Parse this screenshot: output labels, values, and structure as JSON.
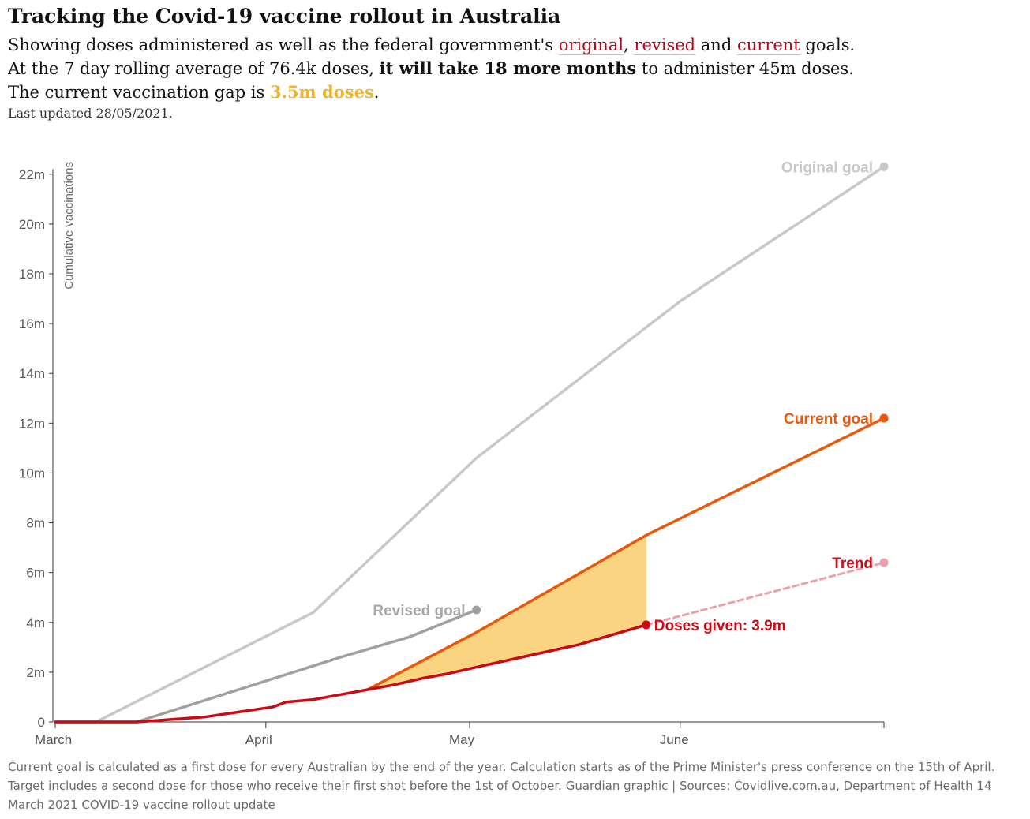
{
  "header": {
    "title": "Tracking the Covid-19 vaccine rollout in Australia",
    "line1_prefix": "Showing doses administered as well as the federal government's ",
    "kw_original": "original",
    "sep1": ", ",
    "kw_revised": "revised",
    "sep2": " and ",
    "kw_current": "current",
    "line1_suffix": " goals.",
    "line2_prefix": "At the 7 day rolling average of 76.4k doses, ",
    "line2_bold": "it will take 18 more months",
    "line2_suffix": " to administer 45m doses.",
    "line3_prefix": "The current vaccination gap is ",
    "line3_gap": "3.5m doses",
    "line3_suffix": ".",
    "updated": "Last updated 28/05/2021."
  },
  "footer": {
    "note": "Current goal is calculated as a first dose for every Australian by the end of the year. Calculation starts as of the Prime Minister's press conference on the 15th of April. Target includes a second dose for those who receive their first shot before the 1st of October. Guardian graphic | Sources: Covidlive.com.au, Department of Health 14 March 2021 COVID-19 vaccine rollout update"
  },
  "colors": {
    "original": "#c8c8c8",
    "revised": "#a0a0a0",
    "current": "#e8590c",
    "doses": "#cc0a14",
    "trend": "#eea0a8",
    "gap": "#fad27a"
  },
  "chart_data": {
    "type": "line",
    "ylabel": "Cumulative vaccinations",
    "xlabel": "",
    "y_ticks": [
      0,
      2,
      4,
      6,
      8,
      10,
      12,
      14,
      16,
      18,
      20,
      22
    ],
    "y_tick_labels": [
      "0",
      "2m",
      "4m",
      "6m",
      "8m",
      "10m",
      "12m",
      "14m",
      "16m",
      "18m",
      "20m",
      "22m"
    ],
    "ylim": [
      0,
      22.5
    ],
    "x_unit": "days since 1 Feb 2021",
    "xlim": [
      28,
      150
    ],
    "x_ticks": [
      {
        "x": 28,
        "label": "March"
      },
      {
        "x": 59,
        "label": "April"
      },
      {
        "x": 89,
        "label": "May"
      },
      {
        "x": 120,
        "label": "June"
      },
      {
        "x": 150,
        "label": ""
      }
    ],
    "gap_label": "3.5m doses",
    "series": [
      {
        "name": "Original goal",
        "label": "Original goal",
        "key": "original",
        "x": [
          28,
          34,
          50,
          66,
          90,
          120,
          150
        ],
        "y": [
          0,
          0,
          2.2,
          4.4,
          10.6,
          16.9,
          22.3
        ]
      },
      {
        "name": "Revised goal",
        "label": "Revised goal",
        "key": "revised",
        "x": [
          28,
          40,
          55,
          70,
          80,
          90
        ],
        "y": [
          0,
          0,
          1.3,
          2.6,
          3.4,
          4.5
        ]
      },
      {
        "name": "Current goal",
        "label": "Current goal",
        "key": "current",
        "x": [
          74,
          90,
          115,
          150
        ],
        "y": [
          1.3,
          3.6,
          7.5,
          12.2
        ]
      },
      {
        "name": "Doses given",
        "label": "Doses given: 3.9m",
        "key": "doses",
        "x": [
          28,
          40,
          45,
          50,
          55,
          60,
          62,
          66,
          70,
          74,
          78,
          82,
          86,
          90,
          95,
          100,
          105,
          110,
          115
        ],
        "y": [
          0,
          0,
          0.1,
          0.2,
          0.4,
          0.6,
          0.8,
          0.9,
          1.1,
          1.3,
          1.5,
          1.75,
          1.95,
          2.2,
          2.5,
          2.8,
          3.1,
          3.5,
          3.9
        ]
      },
      {
        "name": "Trend",
        "label": "Trend",
        "key": "trend",
        "x": [
          115,
          150
        ],
        "y": [
          3.9,
          6.4
        ]
      }
    ]
  }
}
